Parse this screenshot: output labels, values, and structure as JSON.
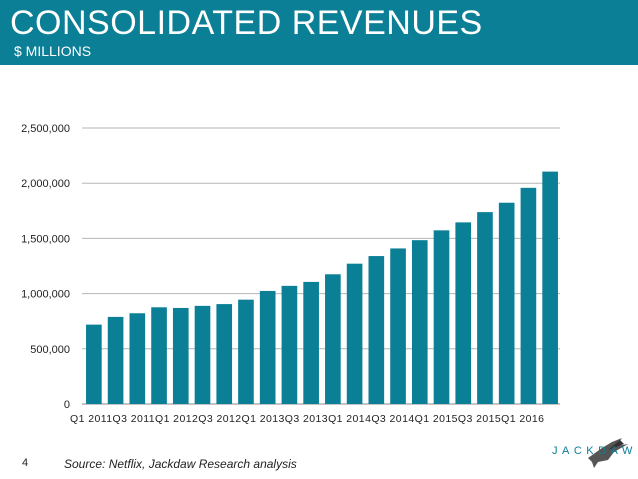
{
  "header": {
    "title": "CONSOLIDATED REVENUES",
    "subtitle": "$ MILLIONS"
  },
  "chart_data": {
    "type": "bar",
    "title": "CONSOLIDATED REVENUES",
    "ylabel": "$ MILLIONS",
    "xlabel": "",
    "ylim": [
      0,
      2500000
    ],
    "yticks": [
      0,
      500000,
      1000000,
      1500000,
      2000000,
      2500000
    ],
    "ytick_labels": [
      "0",
      "500,000",
      "1,000,000",
      "1,500,000",
      "2,000,000",
      "2,500,000"
    ],
    "grid": true,
    "color": "#0b7f96",
    "categories": [
      "Q1 2011",
      "Q2 2011",
      "Q3 2011",
      "Q4 2011",
      "Q1 2012",
      "Q2 2012",
      "Q3 2012",
      "Q4 2012",
      "Q1 2013",
      "Q2 2013",
      "Q3 2013",
      "Q4 2013",
      "Q1 2014",
      "Q2 2014",
      "Q3 2014",
      "Q4 2014",
      "Q1 2015",
      "Q2 2015",
      "Q3 2015",
      "Q4 2015",
      "Q1 2016",
      "Q2 2016"
    ],
    "values": [
      719000,
      789000,
      822000,
      876000,
      870000,
      889000,
      905000,
      945000,
      1024000,
      1070000,
      1106000,
      1175000,
      1271000,
      1340000,
      1409000,
      1484000,
      1573000,
      1645000,
      1738000,
      1823000,
      1958000,
      2105000
    ],
    "xtick_labels": [
      "Q1 2011",
      "Q3 2011",
      "Q1 2012",
      "Q3 2012",
      "Q1 2013",
      "Q3 2013",
      "Q1 2014",
      "Q3 2014",
      "Q1 2015",
      "Q3 2015",
      "Q1 2016"
    ]
  },
  "footer": {
    "page_number": "4",
    "source": "Source: Netflix, Jackdaw Research analysis",
    "logo_text": "JACKDAW"
  },
  "logo": {
    "icon": "jackdaw-bird-icon"
  }
}
